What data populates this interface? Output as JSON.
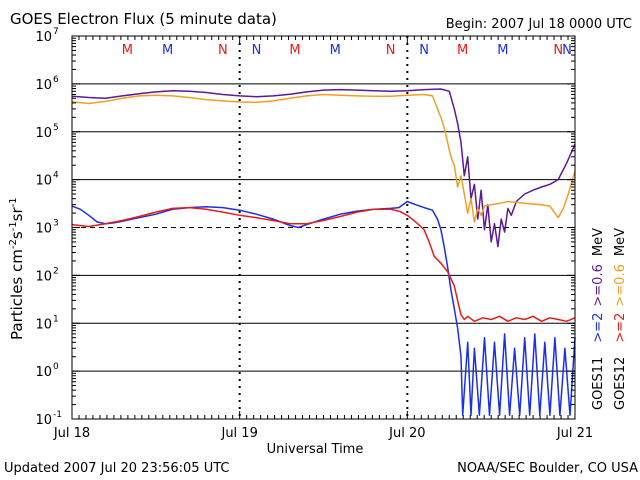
{
  "header": {
    "title": "GOES Electron Flux (5 minute data)",
    "begin": "Begin: 2007 Jul 18 0000 UTC"
  },
  "footer": {
    "updated": "Updated 2007 Jul 20 23:56:05 UTC",
    "credit": "NOAA/SEC Boulder, CO USA"
  },
  "colors": {
    "goes11_high": "#1a2fe8",
    "goes12_high": "#e81a1a",
    "goes11_low": "#5a1a99",
    "goes12_low": "#f0a020",
    "axis": "#000000",
    "threshold": "#000000"
  },
  "chart_data": {
    "type": "line",
    "title": "GOES Electron Flux (5 minute data)",
    "xlabel": "Universal Time",
    "ylabel_parts": [
      "Particles cm",
      "-2",
      "s",
      "-1",
      "sr",
      "-1"
    ],
    "yscale": "log",
    "ylim": [
      0.1,
      10000000
    ],
    "xlim": [
      0,
      3
    ],
    "x_unit": "days since 2007 Jul 18 0000 UTC",
    "x_ticks": [
      {
        "x": 0,
        "label": "Jul 18"
      },
      {
        "x": 1,
        "label": "Jul 19"
      },
      {
        "x": 2,
        "label": "Jul 20"
      },
      {
        "x": 3,
        "label": "Jul 21"
      }
    ],
    "y_ticks": [
      {
        "value": 0.1,
        "base": "10",
        "exp": "-1"
      },
      {
        "value": 1,
        "base": "10",
        "exp": "0"
      },
      {
        "value": 10,
        "base": "10",
        "exp": "1"
      },
      {
        "value": 100,
        "base": "10",
        "exp": "2"
      },
      {
        "value": 1000,
        "base": "10",
        "exp": "3"
      },
      {
        "value": 10000,
        "base": "10",
        "exp": "4"
      },
      {
        "value": 100000,
        "base": "10",
        "exp": "5"
      },
      {
        "value": 1000000,
        "base": "10",
        "exp": "6"
      },
      {
        "value": 10000000,
        "base": "10",
        "exp": "7"
      }
    ],
    "gridlines": [
      1,
      10,
      100,
      10000,
      100000,
      1000000
    ],
    "threshold_line": 1000,
    "markers": [
      {
        "x": 0.33,
        "label": "M",
        "color": "#e81a1a"
      },
      {
        "x": 0.57,
        "label": "M",
        "color": "#1a2fe8"
      },
      {
        "x": 0.9,
        "label": "N",
        "color": "#e81a1a"
      },
      {
        "x": 1.1,
        "label": "N",
        "color": "#1a2fe8"
      },
      {
        "x": 1.33,
        "label": "M",
        "color": "#e81a1a"
      },
      {
        "x": 1.57,
        "label": "M",
        "color": "#1a2fe8"
      },
      {
        "x": 1.9,
        "label": "N",
        "color": "#e81a1a"
      },
      {
        "x": 2.1,
        "label": "N",
        "color": "#1a2fe8"
      },
      {
        "x": 2.33,
        "label": "M",
        "color": "#e81a1a"
      },
      {
        "x": 2.57,
        "label": "M",
        "color": "#1a2fe8"
      },
      {
        "x": 2.9,
        "label": "N",
        "color": "#e81a1a"
      },
      {
        "x": 3.1,
        "label": "N",
        "color": "#1a2fe8"
      }
    ],
    "legend": {
      "columns": [
        {
          "sat": "GOES11",
          "high": ">=2",
          "low": ">=0.6",
          "unit": "MeV",
          "high_color": "#1a2fe8",
          "low_color": "#5a1a99"
        },
        {
          "sat": "GOES12",
          "high": ">=2",
          "low": ">=0.6",
          "unit": "MeV",
          "high_color": "#e81a1a",
          "low_color": "#f0a020"
        }
      ]
    },
    "series": [
      {
        "key": "goes11_low",
        "color": "#5a1a99",
        "points": [
          [
            0,
            550000
          ],
          [
            0.1,
            520000
          ],
          [
            0.2,
            500000
          ],
          [
            0.3,
            560000
          ],
          [
            0.4,
            620000
          ],
          [
            0.5,
            680000
          ],
          [
            0.6,
            720000
          ],
          [
            0.7,
            700000
          ],
          [
            0.8,
            660000
          ],
          [
            0.9,
            600000
          ],
          [
            1.0,
            560000
          ],
          [
            1.1,
            540000
          ],
          [
            1.2,
            560000
          ],
          [
            1.3,
            610000
          ],
          [
            1.4,
            680000
          ],
          [
            1.5,
            740000
          ],
          [
            1.6,
            760000
          ],
          [
            1.7,
            740000
          ],
          [
            1.8,
            720000
          ],
          [
            1.9,
            700000
          ],
          [
            2.0,
            720000
          ],
          [
            2.1,
            760000
          ],
          [
            2.2,
            780000
          ],
          [
            2.25,
            700000
          ],
          [
            2.28,
            300000
          ],
          [
            2.3,
            150000
          ],
          [
            2.32,
            60000
          ],
          [
            2.34,
            12000
          ],
          [
            2.36,
            30000
          ],
          [
            2.38,
            4000
          ],
          [
            2.4,
            8000
          ],
          [
            2.42,
            1500
          ],
          [
            2.44,
            6000
          ],
          [
            2.46,
            900
          ],
          [
            2.48,
            3000
          ],
          [
            2.5,
            500
          ],
          [
            2.52,
            1200
          ],
          [
            2.54,
            400
          ],
          [
            2.56,
            1500
          ],
          [
            2.58,
            800
          ],
          [
            2.6,
            2500
          ],
          [
            2.62,
            1800
          ],
          [
            2.65,
            3500
          ],
          [
            2.7,
            5000
          ],
          [
            2.75,
            6000
          ],
          [
            2.8,
            7000
          ],
          [
            2.85,
            8000
          ],
          [
            2.9,
            10000
          ],
          [
            2.95,
            22000
          ],
          [
            3.0,
            55000
          ]
        ]
      },
      {
        "key": "goes12_low",
        "color": "#f0a020",
        "points": [
          [
            0,
            420000
          ],
          [
            0.1,
            390000
          ],
          [
            0.2,
            430000
          ],
          [
            0.3,
            500000
          ],
          [
            0.4,
            560000
          ],
          [
            0.5,
            580000
          ],
          [
            0.6,
            560000
          ],
          [
            0.7,
            520000
          ],
          [
            0.8,
            470000
          ],
          [
            0.9,
            440000
          ],
          [
            1.0,
            420000
          ],
          [
            1.1,
            410000
          ],
          [
            1.2,
            440000
          ],
          [
            1.3,
            500000
          ],
          [
            1.4,
            560000
          ],
          [
            1.5,
            600000
          ],
          [
            1.6,
            580000
          ],
          [
            1.7,
            560000
          ],
          [
            1.8,
            550000
          ],
          [
            1.9,
            550000
          ],
          [
            2.0,
            580000
          ],
          [
            2.1,
            600000
          ],
          [
            2.15,
            560000
          ],
          [
            2.18,
            300000
          ],
          [
            2.2,
            200000
          ],
          [
            2.22,
            120000
          ],
          [
            2.24,
            60000
          ],
          [
            2.26,
            30000
          ],
          [
            2.28,
            20000
          ],
          [
            2.3,
            7000
          ],
          [
            2.32,
            12000
          ],
          [
            2.34,
            5000
          ],
          [
            2.36,
            2000
          ],
          [
            2.38,
            4000
          ],
          [
            2.4,
            1300
          ],
          [
            2.42,
            2500
          ],
          [
            2.44,
            1800
          ],
          [
            2.46,
            2800
          ],
          [
            2.5,
            3000
          ],
          [
            2.55,
            3200
          ],
          [
            2.6,
            3500
          ],
          [
            2.7,
            3200
          ],
          [
            2.8,
            3000
          ],
          [
            2.85,
            2800
          ],
          [
            2.88,
            2000
          ],
          [
            2.9,
            1600
          ],
          [
            2.93,
            2500
          ],
          [
            2.96,
            5000
          ],
          [
            3.0,
            15000
          ]
        ]
      },
      {
        "key": "goes11_high",
        "color": "#1a2fe8",
        "points": [
          [
            0,
            2800
          ],
          [
            0.05,
            2400
          ],
          [
            0.1,
            1800
          ],
          [
            0.15,
            1300
          ],
          [
            0.2,
            1200
          ],
          [
            0.25,
            1250
          ],
          [
            0.3,
            1350
          ],
          [
            0.4,
            1600
          ],
          [
            0.5,
            1900
          ],
          [
            0.6,
            2400
          ],
          [
            0.7,
            2600
          ],
          [
            0.8,
            2700
          ],
          [
            0.9,
            2600
          ],
          [
            1.0,
            2300
          ],
          [
            1.1,
            1900
          ],
          [
            1.2,
            1500
          ],
          [
            1.3,
            1100
          ],
          [
            1.35,
            1000
          ],
          [
            1.4,
            1150
          ],
          [
            1.5,
            1500
          ],
          [
            1.6,
            1900
          ],
          [
            1.7,
            2200
          ],
          [
            1.8,
            2400
          ],
          [
            1.9,
            2500
          ],
          [
            1.95,
            2600
          ],
          [
            2.0,
            3500
          ],
          [
            2.05,
            3000
          ],
          [
            2.1,
            2600
          ],
          [
            2.15,
            2300
          ],
          [
            2.18,
            1500
          ],
          [
            2.2,
            900
          ],
          [
            2.22,
            400
          ],
          [
            2.24,
            150
          ],
          [
            2.26,
            50
          ],
          [
            2.28,
            20
          ],
          [
            2.3,
            8
          ],
          [
            2.32,
            2
          ],
          [
            2.33,
            0.12
          ],
          [
            2.36,
            4
          ],
          [
            2.38,
            0.12
          ],
          [
            2.4,
            3
          ],
          [
            2.43,
            0.12
          ],
          [
            2.46,
            5
          ],
          [
            2.49,
            0.12
          ],
          [
            2.52,
            4
          ],
          [
            2.55,
            0.12
          ],
          [
            2.58,
            6
          ],
          [
            2.61,
            0.12
          ],
          [
            2.64,
            3
          ],
          [
            2.67,
            0.12
          ],
          [
            2.7,
            5
          ],
          [
            2.73,
            0.12
          ],
          [
            2.76,
            6
          ],
          [
            2.79,
            0.12
          ],
          [
            2.82,
            4
          ],
          [
            2.85,
            0.12
          ],
          [
            2.88,
            5
          ],
          [
            2.91,
            0.12
          ],
          [
            2.94,
            3
          ],
          [
            2.97,
            0.12
          ],
          [
            3.0,
            5
          ]
        ]
      },
      {
        "key": "goes12_high",
        "color": "#e81a1a",
        "points": [
          [
            0,
            1150
          ],
          [
            0.1,
            1050
          ],
          [
            0.2,
            1200
          ],
          [
            0.3,
            1400
          ],
          [
            0.4,
            1700
          ],
          [
            0.5,
            2100
          ],
          [
            0.6,
            2500
          ],
          [
            0.7,
            2600
          ],
          [
            0.8,
            2400
          ],
          [
            0.9,
            2100
          ],
          [
            1.0,
            1800
          ],
          [
            1.1,
            1600
          ],
          [
            1.2,
            1400
          ],
          [
            1.3,
            1200
          ],
          [
            1.4,
            1200
          ],
          [
            1.5,
            1400
          ],
          [
            1.6,
            1700
          ],
          [
            1.7,
            2100
          ],
          [
            1.8,
            2400
          ],
          [
            1.9,
            2400
          ],
          [
            1.95,
            2200
          ],
          [
            2.0,
            1800
          ],
          [
            2.05,
            1300
          ],
          [
            2.1,
            900
          ],
          [
            2.13,
            500
          ],
          [
            2.16,
            250
          ],
          [
            2.2,
            180
          ],
          [
            2.24,
            120
          ],
          [
            2.28,
            60
          ],
          [
            2.3,
            30
          ],
          [
            2.32,
            15
          ],
          [
            2.34,
            12
          ],
          [
            2.36,
            14
          ],
          [
            2.4,
            11
          ],
          [
            2.45,
            13
          ],
          [
            2.5,
            12
          ],
          [
            2.55,
            14
          ],
          [
            2.6,
            11
          ],
          [
            2.65,
            13
          ],
          [
            2.7,
            12
          ],
          [
            2.75,
            14
          ],
          [
            2.8,
            11
          ],
          [
            2.85,
            13
          ],
          [
            2.9,
            12
          ],
          [
            2.95,
            11
          ],
          [
            3.0,
            13
          ]
        ]
      }
    ]
  }
}
